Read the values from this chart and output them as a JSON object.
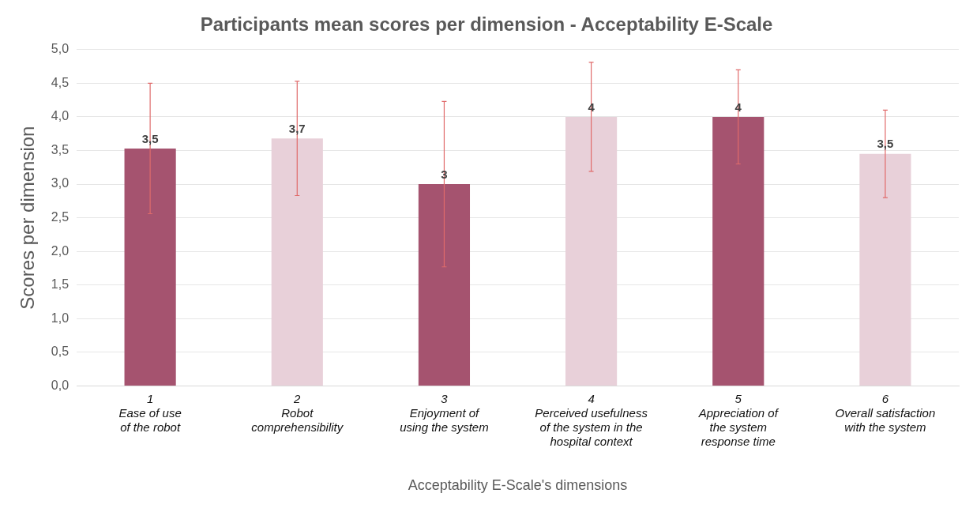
{
  "chart_data": {
    "type": "bar",
    "title": "Participants mean scores per dimension - Acceptability E-Scale",
    "xlabel": "Acceptability E-Scale's dimensions",
    "ylabel": "Scores per dimension",
    "categories": [
      "1\nEase of use\nof the robot",
      "2\nRobot\ncomprehensibility",
      "3\nEnjoyment of\nusing the system",
      "4\nPerceived usefulness\nof the system in the\nhospital context",
      "5\nAppreciation of\nthe system\nresponse time",
      "6\nOverall satisfaction\nwith the system"
    ],
    "values": [
      3.53,
      3.68,
      3.0,
      4.0,
      4.0,
      3.45
    ],
    "colors": [
      "#a5536f",
      "#e8d0d9",
      "#a5536f",
      "#e8d0d9",
      "#a5536f",
      "#e8d0d9"
    ],
    "errors": [
      0.97,
      0.85,
      1.23,
      0.81,
      0.7,
      0.65
    ],
    "value_labels": [
      "3,5",
      "3,7",
      "3",
      "4",
      "4",
      "3,5"
    ],
    "ylim": [
      0,
      5
    ],
    "yticks": [
      {
        "value": 0,
        "label": "0,0"
      },
      {
        "value": 0.5,
        "label": "0,5"
      },
      {
        "value": 1,
        "label": "1,0"
      },
      {
        "value": 1.5,
        "label": "1,5"
      },
      {
        "value": 2,
        "label": "2,0"
      },
      {
        "value": 2.5,
        "label": "2,5"
      },
      {
        "value": 3,
        "label": "3,0"
      },
      {
        "value": 3.5,
        "label": "3,5"
      },
      {
        "value": 4,
        "label": "4,0"
      },
      {
        "value": 4.5,
        "label": "4,5"
      },
      {
        "value": 5,
        "label": "5,0"
      }
    ],
    "grid": "y"
  }
}
